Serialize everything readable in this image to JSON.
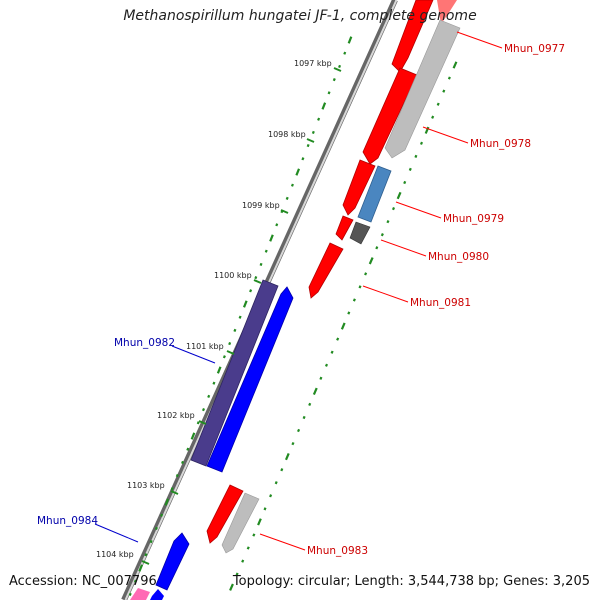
{
  "title": "Methanospirillum hungatei JF-1, complete genome",
  "footer": {
    "accession": "Accession: NC_007796",
    "summary": "Topology: circular; Length: 3,544,738 bp; Genes: 3,205"
  },
  "colors": {
    "forward_gene": "#ff0000",
    "reverse_gene": "#0000ff",
    "reverse_dark_gene": "#4a3c8c",
    "steel_gene": "#4682b4",
    "grey_gene": "#bbbbbb",
    "dark_gene": "#555555",
    "pink_gene": "#ff69b4",
    "tick": "#228b22",
    "fwd_label": "#cc0000",
    "rev_label": "#0000aa"
  },
  "kbp_ticks": [
    "1097 kbp",
    "1098 kbp",
    "1099 kbp",
    "1100 kbp",
    "1101 kbp",
    "1102 kbp",
    "1103 kbp",
    "1104 kbp"
  ],
  "gene_labels": [
    {
      "text": "Mhun_0977",
      "strand": "forward"
    },
    {
      "text": "Mhun_0978",
      "strand": "forward"
    },
    {
      "text": "Mhun_0979",
      "strand": "forward"
    },
    {
      "text": "Mhun_0980",
      "strand": "forward"
    },
    {
      "text": "Mhun_0981",
      "strand": "forward"
    },
    {
      "text": "Mhun_0982",
      "strand": "reverse"
    },
    {
      "text": "Mhun_0983",
      "strand": "forward"
    },
    {
      "text": "Mhun_0984",
      "strand": "reverse"
    }
  ]
}
